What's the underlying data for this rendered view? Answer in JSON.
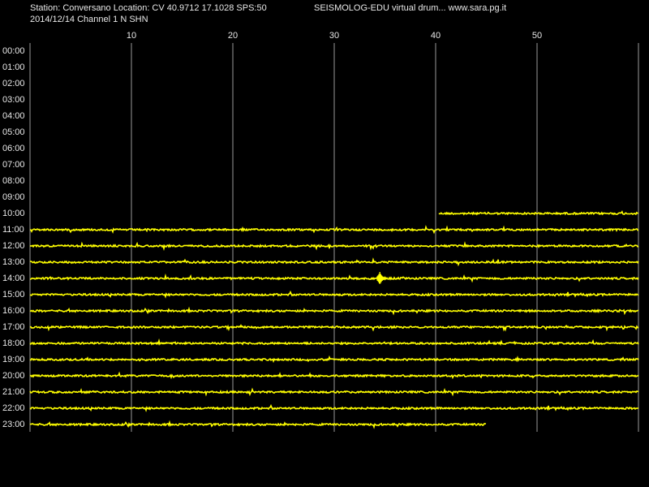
{
  "header": {
    "line1_left": "Station: Conversano Location: CV 40.9712 17.1028 SPS:50",
    "line1_right": "SEISMOLOG-EDU virtual drum... www.sara.pg.it",
    "line2": "2014/12/14  Channel 1 N SHN"
  },
  "drum": {
    "minutes_span": [
      0,
      60
    ],
    "minute_ticks": [
      10,
      20,
      30,
      40,
      50
    ],
    "hours": [
      "00:00",
      "01:00",
      "02:00",
      "03:00",
      "04:00",
      "05:00",
      "06:00",
      "07:00",
      "08:00",
      "09:00",
      "10:00",
      "11:00",
      "12:00",
      "13:00",
      "14:00",
      "15:00",
      "16:00",
      "17:00",
      "18:00",
      "19:00",
      "20:00",
      "21:00",
      "22:00",
      "23:00"
    ],
    "recording_start": {
      "row": 10,
      "minute": 40.3
    },
    "recording_end": {
      "row": 23,
      "minute": 45
    },
    "event": {
      "row": 14,
      "minute": 34.5
    }
  }
}
